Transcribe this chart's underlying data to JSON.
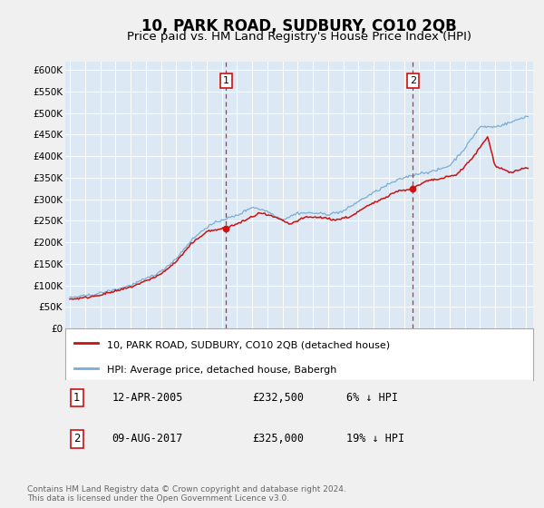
{
  "title": "10, PARK ROAD, SUDBURY, CO10 2QB",
  "subtitle": "Price paid vs. HM Land Registry's House Price Index (HPI)",
  "title_fontsize": 12,
  "subtitle_fontsize": 9.5,
  "ylim": [
    0,
    620000
  ],
  "yticks": [
    0,
    50000,
    100000,
    150000,
    200000,
    250000,
    300000,
    350000,
    400000,
    450000,
    500000,
    550000,
    600000
  ],
  "ytick_labels": [
    "£0",
    "£50K",
    "£100K",
    "£150K",
    "£200K",
    "£250K",
    "£300K",
    "£350K",
    "£400K",
    "£450K",
    "£500K",
    "£550K",
    "£600K"
  ],
  "xlim_start": 1994.7,
  "xlim_end": 2025.5,
  "plot_bg": "#dce9f5",
  "grid_color": "#ffffff",
  "fig_bg": "#f0f0f0",
  "hpi_color": "#7aadd4",
  "price_color": "#cc1111",
  "marker1_year": 2005.28,
  "marker1_price": 232500,
  "marker2_year": 2017.58,
  "marker2_price": 325000,
  "legend_label1": "10, PARK ROAD, SUDBURY, CO10 2QB (detached house)",
  "legend_label2": "HPI: Average price, detached house, Babergh",
  "footnote": "Contains HM Land Registry data © Crown copyright and database right 2024.\nThis data is licensed under the Open Government Licence v3.0.",
  "hpi_anchors_x": [
    1995.0,
    1996.0,
    1997.0,
    1998.0,
    1999.0,
    2000.0,
    2001.0,
    2002.0,
    2003.0,
    2004.0,
    2005.0,
    2006.0,
    2007.0,
    2008.0,
    2009.0,
    2010.0,
    2011.0,
    2012.0,
    2013.0,
    2014.0,
    2015.0,
    2016.0,
    2017.0,
    2018.0,
    2019.0,
    2020.0,
    2021.0,
    2022.0,
    2023.0,
    2024.0,
    2025.0
  ],
  "hpi_anchors_y": [
    72000,
    75000,
    82000,
    90000,
    100000,
    115000,
    132000,
    162000,
    205000,
    235000,
    252000,
    262000,
    282000,
    272000,
    252000,
    268000,
    268000,
    265000,
    272000,
    295000,
    315000,
    335000,
    350000,
    360000,
    365000,
    378000,
    418000,
    468000,
    468000,
    478000,
    492000
  ],
  "price_anchors_x": [
    1995.0,
    1996.0,
    1997.0,
    1998.0,
    1999.0,
    2000.0,
    2001.0,
    2002.0,
    2003.0,
    2004.0,
    2005.28,
    2006.5,
    2007.5,
    2008.5,
    2009.5,
    2010.5,
    2011.5,
    2012.5,
    2013.5,
    2014.5,
    2015.5,
    2016.5,
    2017.58,
    2018.5,
    2019.5,
    2020.5,
    2021.5,
    2022.5,
    2023.0,
    2024.0,
    2025.0
  ],
  "price_anchors_y": [
    68000,
    71000,
    78000,
    86000,
    96000,
    110000,
    126000,
    155000,
    196000,
    225000,
    232500,
    250000,
    268000,
    258000,
    242000,
    258000,
    258000,
    252000,
    260000,
    282000,
    300000,
    318000,
    325000,
    342000,
    348000,
    358000,
    395000,
    445000,
    378000,
    362000,
    372000
  ]
}
